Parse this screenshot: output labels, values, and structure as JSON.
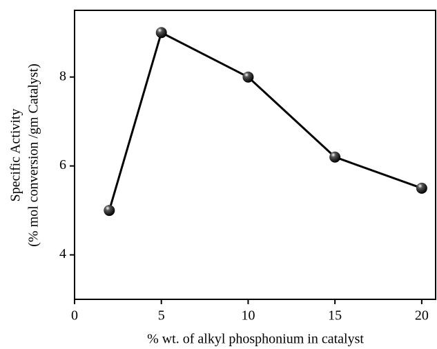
{
  "chart_data": {
    "type": "line",
    "xlabel": "% wt. of alkyl phosphonium in catalyst",
    "ylabel": [
      "Specific Activity",
      "(% mol conversion /gm Catalyst)"
    ],
    "x": [
      2,
      5,
      10,
      15,
      20
    ],
    "series": [
      {
        "color": "#000000",
        "values": [
          5,
          9,
          8,
          6.2,
          5.5
        ]
      }
    ],
    "xlim": [
      0,
      20.8
    ],
    "xticks": [
      0,
      5,
      10,
      15,
      20
    ],
    "ylim": [
      3,
      9.5
    ],
    "yticks": [
      4,
      6,
      8
    ]
  }
}
